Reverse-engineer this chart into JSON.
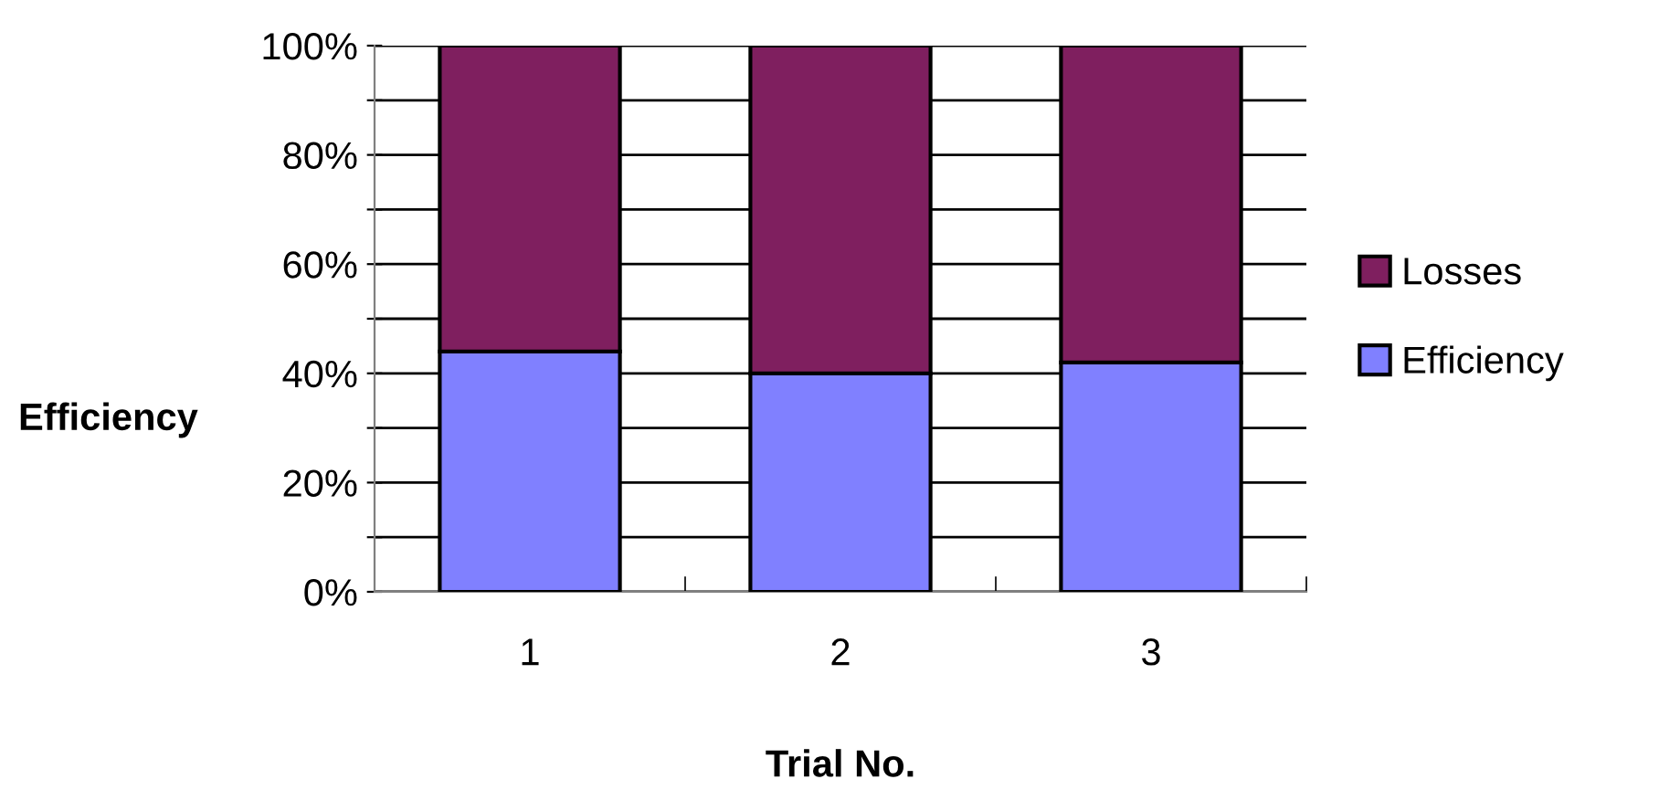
{
  "chart_data": {
    "type": "bar",
    "stacked": true,
    "xlabel": "Trial No.",
    "ylabel": "Efficiency",
    "categories": [
      "1",
      "2",
      "3"
    ],
    "series": [
      {
        "name": "Efficiency",
        "color": "#8080ff",
        "values": [
          44,
          40,
          42
        ]
      },
      {
        "name": "Losses",
        "color": "#7f1f5f",
        "values": [
          56,
          60,
          58
        ]
      }
    ],
    "ylim": [
      0,
      100
    ],
    "yticks": [
      {
        "value": 0,
        "label": "0%"
      },
      {
        "value": 10,
        "label": null
      },
      {
        "value": 20,
        "label": "20%"
      },
      {
        "value": 30,
        "label": null
      },
      {
        "value": 40,
        "label": "40%"
      },
      {
        "value": 50,
        "label": null
      },
      {
        "value": 60,
        "label": "60%"
      },
      {
        "value": 70,
        "label": null
      },
      {
        "value": 80,
        "label": "80%"
      },
      {
        "value": 90,
        "label": null
      },
      {
        "value": 100,
        "label": "100%"
      }
    ],
    "grid": "y",
    "legend": "right"
  }
}
